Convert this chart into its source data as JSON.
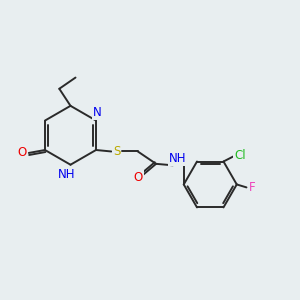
{
  "background_color": "#e8eef0",
  "bond_color": "#2a2a2a",
  "atom_colors": {
    "N": "#0000ee",
    "O": "#ee0000",
    "S": "#bbaa00",
    "Cl": "#22bb22",
    "F": "#ee44bb",
    "C": "#2a2a2a"
  },
  "font_size_atom": 8.5,
  "lw": 1.4
}
